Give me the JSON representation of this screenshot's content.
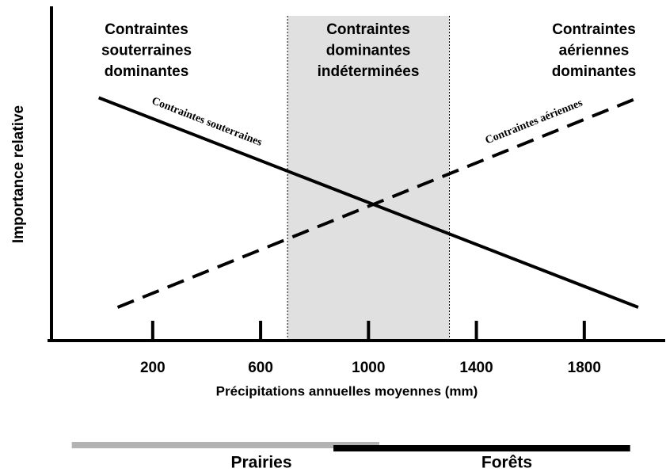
{
  "chart_data": {
    "type": "line",
    "xlabel": "Précipitations annuelles moyennes (mm)",
    "ylabel": "Importance relative",
    "xlim": [
      -190,
      2100
    ],
    "ylim": [
      0,
      100
    ],
    "xticks": [
      200,
      600,
      1000,
      1400,
      1800
    ],
    "series": [
      {
        "name": "Contraintes souterraines",
        "color": "#000000",
        "dash": false,
        "x": [
          0,
          2000
        ],
        "values": [
          73,
          10
        ]
      },
      {
        "name": "Contraintes aériennes",
        "color": "#000000",
        "dash": true,
        "x": [
          70,
          2000
        ],
        "values": [
          10,
          73
        ]
      }
    ],
    "shaded_band": {
      "x": [
        700,
        1300
      ],
      "color": "#e0e0e0"
    },
    "regions": [
      {
        "lines": [
          "Contraintes",
          "souterraines",
          "dominantes"
        ]
      },
      {
        "lines": [
          "Contraintes",
          "dominantes",
          "indéterminées"
        ]
      },
      {
        "lines": [
          "Contraintes",
          "aériennes",
          "dominantes"
        ]
      }
    ],
    "ranges": [
      {
        "name": "Prairies",
        "color": "#b3b3b3",
        "x": [
          -100,
          1040
        ]
      },
      {
        "name": "Forêts",
        "color": "#000000",
        "x": [
          870,
          1970
        ]
      }
    ]
  }
}
